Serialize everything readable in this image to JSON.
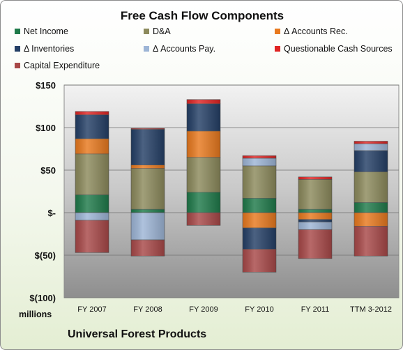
{
  "chart_data": {
    "type": "bar",
    "stacked": true,
    "title": "Free Cash Flow Components",
    "categories": [
      "FY 2007",
      "FY 2008",
      "FY 2009",
      "FY 2010",
      "FY 2011",
      "TTM 3-2012"
    ],
    "ylabel_units": "millions",
    "ylim": [
      -100,
      150
    ],
    "yticks": [
      150,
      100,
      50,
      0,
      -50,
      -100
    ],
    "ytick_labels": [
      "$150",
      "$100",
      "$50",
      "$-",
      "$(50)",
      "$(100)"
    ],
    "grid": true,
    "legend_position": "top",
    "series": [
      {
        "name": "Net Income",
        "color": "#1f7a4a",
        "values": [
          21,
          4,
          24,
          17,
          4,
          12
        ]
      },
      {
        "name": "D&A",
        "color": "#8c8a5c",
        "values": [
          48,
          48,
          41,
          38,
          35,
          36
        ]
      },
      {
        "name": "Δ Accounts Rec.",
        "color": "#e8791e",
        "values": [
          18,
          4,
          31,
          -18,
          -8,
          -16
        ]
      },
      {
        "name": "Δ Inventories",
        "color": "#243f66",
        "values": [
          28,
          42,
          32,
          -25,
          -3,
          25
        ]
      },
      {
        "name": "Δ Accounts Pay.",
        "color": "#9db5d6",
        "values": [
          -9,
          -32,
          0,
          9,
          -9,
          8
        ]
      },
      {
        "name": "Questionable Cash Sources",
        "color": "#e02424",
        "values": [
          4,
          1,
          5,
          3,
          3,
          3
        ]
      },
      {
        "name": "Capital Expenditure",
        "color": "#a84848",
        "values": [
          -38,
          -19,
          -15,
          -27,
          -34,
          -35
        ]
      }
    ]
  },
  "footer": "Universal Forest Products"
}
